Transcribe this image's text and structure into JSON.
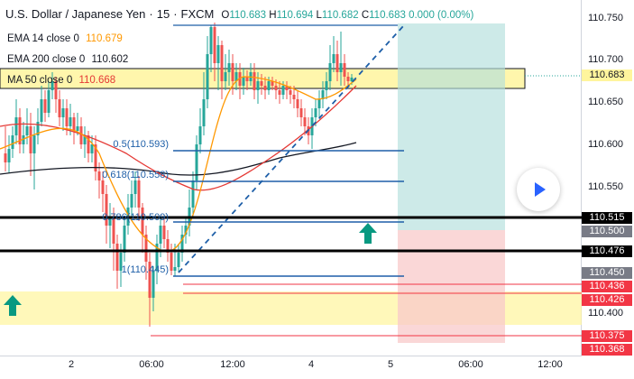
{
  "header": {
    "symbol": "U.S. Dollar / Japanese Yen",
    "sep1": "·",
    "interval": "15",
    "sep2": "·",
    "source": "FXCM",
    "o_label": "O",
    "o_value": "110.683",
    "h_label": "H",
    "h_value": "110.694",
    "l_label": "L",
    "l_value": "110.682",
    "c_label": "C",
    "c_value": "110.683",
    "change": "0.000 (0.00%)"
  },
  "indicators": [
    {
      "label": "EMA 14 close 0",
      "value": "110.679",
      "color": "#ff9800"
    },
    {
      "label": "EMA 200 close 0",
      "value": "110.602",
      "color": "#131722"
    },
    {
      "label": "MA 50 close 0",
      "value": "110.668",
      "color": "#e53935"
    }
  ],
  "price_axis": {
    "ticks": [
      "110.750",
      "110.700",
      "110.650",
      "110.600",
      "110.550",
      "110.400"
    ],
    "tags": [
      {
        "text": "110.683",
        "bg": "#fff59d",
        "fg": "#131722"
      },
      {
        "text": "110.515",
        "bg": "#000000",
        "fg": "#ffffff"
      },
      {
        "text": "110.500",
        "bg": "#787b86",
        "fg": "#ffffff"
      },
      {
        "text": "110.476",
        "bg": "#000000",
        "fg": "#ffffff"
      },
      {
        "text": "110.450",
        "bg": "#787b86",
        "fg": "#ffffff"
      },
      {
        "text": "110.436",
        "bg": "#f23645",
        "fg": "#ffffff"
      },
      {
        "text": "110.426",
        "bg": "#f23645",
        "fg": "#ffffff"
      },
      {
        "text": "110.375",
        "bg": "#f23645",
        "fg": "#ffffff"
      },
      {
        "text": "110.368",
        "bg": "#f23645",
        "fg": "#ffffff"
      }
    ]
  },
  "time_axis": {
    "ticks": [
      "2",
      "06:00",
      "12:00",
      "4",
      "5",
      "06:00",
      "12:00"
    ]
  },
  "fib_labels": [
    "0.5(110.593)",
    "0.618(110.558)",
    "0.786(110.509)",
    "1(110.445)"
  ],
  "colors": {
    "up": "#26a69a",
    "down": "#ef5350",
    "fib_line": "#1e5fa8",
    "zone": "#fff59d",
    "profit": "#b2dfdb",
    "loss": "#f8c9c9",
    "arrow": "#089981",
    "play": "#2962ff"
  },
  "icons": {
    "play": "play-icon",
    "arrow": "up-arrow-icon"
  }
}
